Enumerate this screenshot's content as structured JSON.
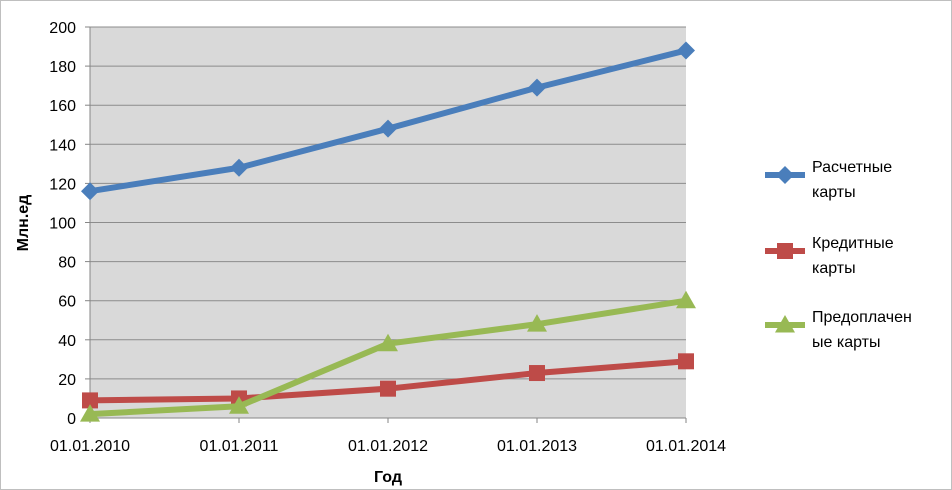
{
  "chart_data": {
    "type": "line",
    "categories": [
      "01.01.2010",
      "01.01.2011",
      "01.01.2012",
      "01.01.2013",
      "01.01.2014"
    ],
    "series": [
      {
        "name_lines": [
          "Расчетные",
          "карты"
        ],
        "values": [
          116,
          128,
          148,
          169,
          188
        ],
        "color": "#4a7ebb",
        "marker": "diamond"
      },
      {
        "name_lines": [
          "Кредитные",
          "карты"
        ],
        "values": [
          9,
          10,
          15,
          23,
          29
        ],
        "color": "#be4b48",
        "marker": "square"
      },
      {
        "name_lines": [
          "Предоплачен",
          "ые карты"
        ],
        "values": [
          2,
          6,
          38,
          48,
          60
        ],
        "color": "#98b954",
        "marker": "triangle"
      }
    ],
    "xlabel": "Год",
    "ylabel": "Млн.ед",
    "ylim": [
      0,
      200
    ],
    "yticks": [
      0,
      20,
      40,
      60,
      80,
      100,
      120,
      140,
      160,
      180,
      200
    ],
    "grid": true,
    "plot_background": "#d9d9d9",
    "legend_position": "right"
  }
}
